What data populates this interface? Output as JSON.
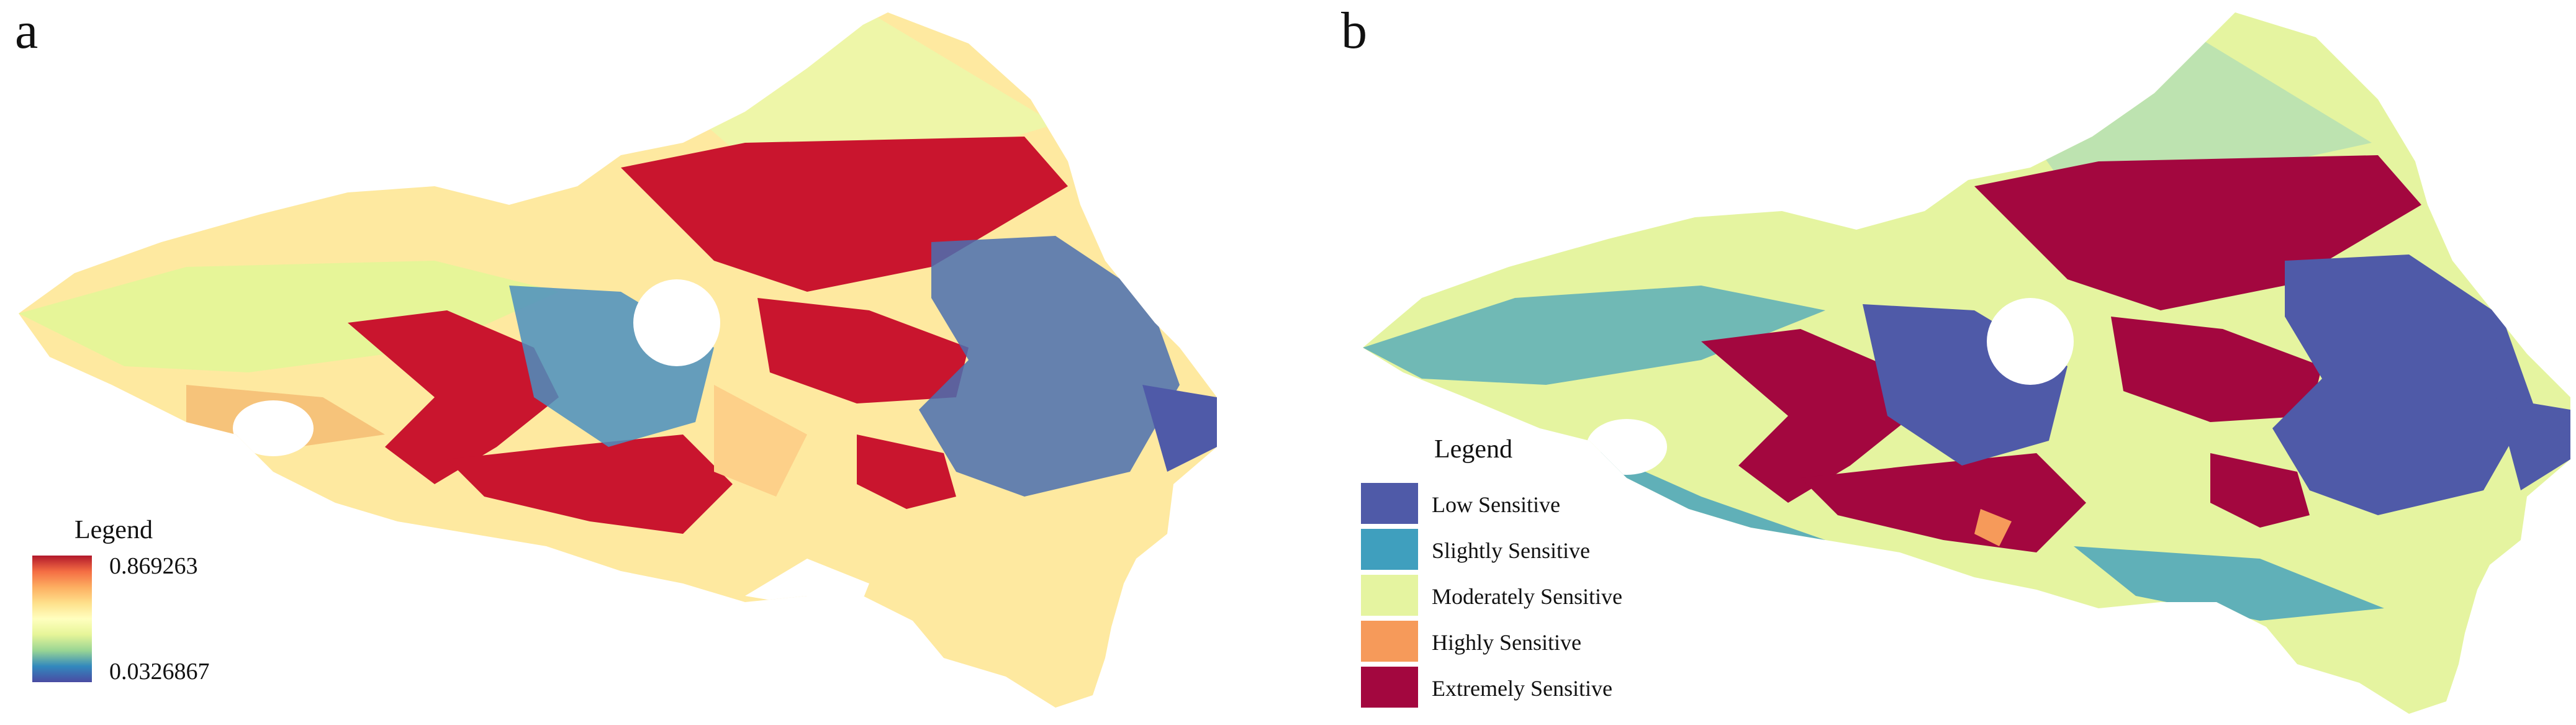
{
  "panels": {
    "a": {
      "label": "a",
      "legend": {
        "title": "Legend",
        "max_label": "0.869263",
        "min_label": "0.0326867",
        "max_value": 0.869263,
        "min_value": 0.0326867,
        "color_ramp": [
          "#b2182b",
          "#f46d43",
          "#fdae61",
          "#fee08b",
          "#ffffbf",
          "#e6f598",
          "#99d594",
          "#3288bd",
          "#4a4ba3"
        ]
      }
    },
    "b": {
      "label": "b",
      "legend": {
        "title": "Legend",
        "items": [
          {
            "label": "Low Sensitive",
            "color": "#4f5aa8"
          },
          {
            "label": "Slightly Sensitive",
            "color": "#3f9fbe"
          },
          {
            "label": "Moderately Sensitive",
            "color": "#e5f4a0"
          },
          {
            "label": "Highly Sensitive",
            "color": "#f69a5a"
          },
          {
            "label": "Extremely Sensitive",
            "color": "#a3073f"
          }
        ]
      }
    }
  }
}
